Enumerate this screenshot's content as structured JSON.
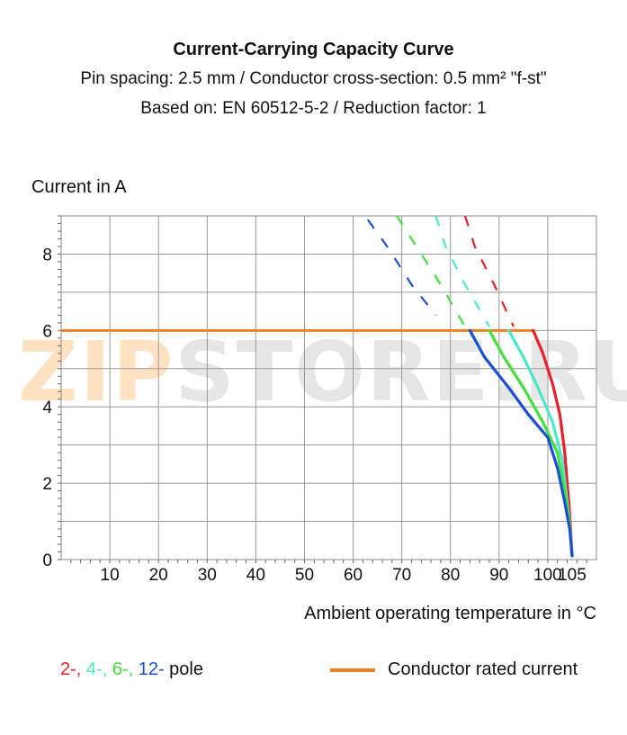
{
  "title": "Current-Carrying Capacity Curve",
  "subtitle_1": "Pin spacing: 2.5 mm / Conductor cross-section: 0.5 mm² \"f-st\"",
  "subtitle_2": "Based on: EN 60512-5-2 / Reduction factor: 1",
  "watermark": {
    "part1": "ZIP",
    "part2": "STORE.RU"
  },
  "legend": {
    "pole_items": [
      {
        "label": "2-,",
        "color": "#e8202a"
      },
      {
        "label": "4-,",
        "color": "#4ee8c8"
      },
      {
        "label": "6-,",
        "color": "#44e040"
      },
      {
        "label": "12-",
        "color": "#1a4fd6"
      }
    ],
    "pole_suffix": " pole",
    "rated_label": "Conductor rated current",
    "rated_color": "#f08020"
  },
  "chart_data": {
    "type": "line",
    "title": "Current-Carrying Capacity Curve",
    "xlabel": "Ambient operating temperature in °C",
    "ylabel": "Current in A",
    "xlim": [
      0,
      110
    ],
    "ylim": [
      0,
      9
    ],
    "x_ticks": [
      10,
      20,
      30,
      40,
      50,
      60,
      70,
      80,
      90,
      100,
      105
    ],
    "y_ticks": [
      0,
      2,
      4,
      6,
      8
    ],
    "grid": true,
    "series": [
      {
        "name": "2-",
        "color": "#e8202a",
        "solid": [
          [
            97,
            6.0
          ],
          [
            99,
            5.4
          ],
          [
            101,
            4.6
          ],
          [
            102.5,
            3.8
          ],
          [
            103.5,
            2.8
          ],
          [
            104,
            2.0
          ],
          [
            104.4,
            1.4
          ],
          [
            104.7,
            0.8
          ],
          [
            105,
            0.1
          ]
        ],
        "dashed": [
          [
            83,
            9.0
          ],
          [
            85,
            8.2
          ],
          [
            89,
            7.2
          ],
          [
            93,
            6.1
          ]
        ]
      },
      {
        "name": "4-",
        "color": "#4ee8c8",
        "solid": [
          [
            92,
            6.0
          ],
          [
            95,
            5.3
          ],
          [
            98,
            4.5
          ],
          [
            101,
            3.6
          ],
          [
            103,
            2.6
          ],
          [
            104,
            1.5
          ],
          [
            104.6,
            0.8
          ],
          [
            105,
            0.1
          ]
        ],
        "dashed": [
          [
            77,
            9.0
          ],
          [
            79,
            8.2
          ],
          [
            83,
            7.2
          ],
          [
            88,
            6.1
          ]
        ]
      },
      {
        "name": "6-",
        "color": "#44e040",
        "solid": [
          [
            88,
            6.0
          ],
          [
            91,
            5.3
          ],
          [
            95,
            4.5
          ],
          [
            99,
            3.6
          ],
          [
            102,
            2.8
          ],
          [
            103.5,
            1.8
          ],
          [
            104.5,
            0.9
          ],
          [
            105,
            0.1
          ]
        ],
        "dashed": [
          [
            69,
            9.0
          ],
          [
            73,
            8.2
          ],
          [
            78,
            7.2
          ],
          [
            83,
            6.1
          ]
        ]
      },
      {
        "name": "12-",
        "color": "#1a4fd6",
        "solid": [
          [
            84,
            6.0
          ],
          [
            87,
            5.3
          ],
          [
            92,
            4.5
          ],
          [
            96,
            3.8
          ],
          [
            100,
            3.2
          ],
          [
            102,
            2.4
          ],
          [
            103.5,
            1.5
          ],
          [
            104.5,
            0.8
          ],
          [
            105,
            0.1
          ]
        ],
        "dashed": [
          [
            63,
            8.9
          ],
          [
            67,
            8.2
          ],
          [
            72,
            7.2
          ],
          [
            77,
            6.4
          ]
        ]
      }
    ],
    "rated_current": {
      "label": "Conductor rated current",
      "value": 6.0,
      "x_end": 97,
      "color": "#f08020"
    }
  }
}
